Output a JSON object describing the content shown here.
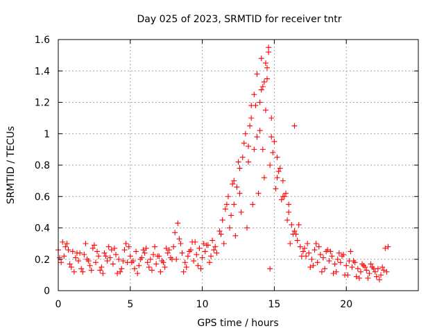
{
  "chart_data": {
    "type": "scatter",
    "title": "Day 025 of 2023, SRMTID for receiver tntr",
    "xlabel": "GPS time / hours",
    "ylabel": "SRMTID / TECUs",
    "xlim": [
      0,
      25.0
    ],
    "ylim": [
      0,
      1.6
    ],
    "x_ticks": [
      0,
      5,
      10,
      15,
      20
    ],
    "x_tick_labels": [
      "0",
      "5",
      "10",
      "15",
      "20"
    ],
    "y_ticks": [
      0,
      0.2,
      0.4,
      0.6,
      0.8,
      1.0,
      1.2,
      1.4,
      1.6
    ],
    "y_tick_labels": [
      "0",
      "0.2",
      "0.4",
      "0.6",
      "0.8",
      "1",
      "1.2",
      "1.4",
      "1.6"
    ],
    "grid": true,
    "marker": "plus",
    "color": "#ff0000",
    "series": [
      {
        "name": "SRMTID",
        "x": [
          0.0,
          0.2,
          0.4,
          0.6,
          0.8,
          1.0,
          1.2,
          1.4,
          1.6,
          1.8,
          2.0,
          2.2,
          2.4,
          2.6,
          2.8,
          3.0,
          3.2,
          3.4,
          3.6,
          3.8,
          4.0,
          4.2,
          4.4,
          4.6,
          4.8,
          5.0,
          5.2,
          5.4,
          5.6,
          5.8,
          6.0,
          6.2,
          6.4,
          6.6,
          6.8,
          7.0,
          7.2,
          7.4,
          7.6,
          7.8,
          8.0,
          8.2,
          8.4,
          8.6,
          8.8,
          9.0,
          9.2,
          9.4,
          9.6,
          9.8,
          10.0,
          10.2,
          10.4,
          10.6,
          10.8,
          11.0,
          11.2,
          11.4,
          11.6,
          11.8,
          12.0,
          12.2,
          12.4,
          12.6,
          12.8,
          13.0,
          13.2,
          13.4,
          13.6,
          13.8,
          14.0,
          14.2,
          14.4,
          14.6,
          14.8,
          15.0,
          15.2,
          15.4,
          15.6,
          15.8,
          16.0,
          16.2,
          16.4,
          16.6,
          16.8,
          17.0,
          17.2,
          17.4,
          17.6,
          17.8,
          18.0,
          18.2,
          18.4,
          18.6,
          18.8,
          19.0,
          19.2,
          19.4,
          19.6,
          19.8,
          20.0,
          20.2,
          20.4,
          20.6,
          20.8,
          21.0,
          21.2,
          21.4,
          21.6,
          21.8,
          22.0,
          22.2,
          22.4,
          22.6,
          22.8,
          0.1,
          0.5,
          0.9,
          1.3,
          1.7,
          2.1,
          2.5,
          2.9,
          3.3,
          3.7,
          4.1,
          4.5,
          4.9,
          5.3,
          5.7,
          6.1,
          6.5,
          6.9,
          7.3,
          7.7,
          8.1,
          8.5,
          8.9,
          9.3,
          9.7,
          10.1,
          10.5,
          10.9,
          11.3,
          11.7,
          12.1,
          12.5,
          12.9,
          13.3,
          13.7,
          14.1,
          14.5,
          14.9,
          15.3,
          15.7,
          16.1,
          16.5,
          16.9,
          17.3,
          17.7,
          18.1,
          18.5,
          18.9,
          19.3,
          19.7,
          20.1,
          20.5,
          20.9,
          21.3,
          21.7,
          22.1,
          22.5,
          22.9,
          11.5,
          11.9,
          12.3,
          12.7,
          13.1,
          13.5,
          13.9,
          14.3,
          14.7,
          15.1,
          15.5,
          15.9,
          16.3,
          16.7,
          12.2,
          12.6,
          13.2,
          13.6,
          14.0,
          14.4,
          14.8,
          15.2,
          15.6,
          16.0,
          16.4,
          13.4,
          13.8,
          14.2,
          14.6,
          14.1,
          14.5,
          14.3,
          14.7,
          0.3,
          0.7,
          1.1,
          1.5,
          1.9,
          2.3,
          2.7,
          3.1,
          3.5,
          3.9,
          4.3,
          4.7,
          5.1,
          5.5,
          5.9,
          6.3,
          6.7,
          7.1,
          7.5,
          7.9,
          8.3,
          8.7,
          9.1,
          9.5,
          9.9,
          10.3,
          10.7,
          17.1,
          17.5,
          17.9,
          18.3,
          18.7,
          19.1,
          19.5,
          19.9,
          20.3,
          20.7,
          21.1,
          21.5,
          21.9,
          22.3,
          22.7
        ],
        "y": [
          0.26,
          0.18,
          0.22,
          0.3,
          0.17,
          0.25,
          0.21,
          0.19,
          0.14,
          0.23,
          0.2,
          0.16,
          0.27,
          0.18,
          0.22,
          0.15,
          0.24,
          0.19,
          0.21,
          0.17,
          0.23,
          0.2,
          0.14,
          0.26,
          0.18,
          0.22,
          0.19,
          0.25,
          0.16,
          0.21,
          0.24,
          0.18,
          0.2,
          0.23,
          0.17,
          0.22,
          0.19,
          0.15,
          0.24,
          0.21,
          0.28,
          0.2,
          0.33,
          0.24,
          0.18,
          0.22,
          0.26,
          0.19,
          0.23,
          0.27,
          0.21,
          0.25,
          0.29,
          0.22,
          0.26,
          0.24,
          0.38,
          0.45,
          0.52,
          0.6,
          0.48,
          0.7,
          0.66,
          0.78,
          0.85,
          1.0,
          0.92,
          1.1,
          1.25,
          1.38,
          1.2,
          1.3,
          1.45,
          1.55,
          1.1,
          0.95,
          0.85,
          0.78,
          0.7,
          0.62,
          0.5,
          0.42,
          0.38,
          0.32,
          0.28,
          0.25,
          0.22,
          0.24,
          0.2,
          0.26,
          0.18,
          0.23,
          0.21,
          0.25,
          0.19,
          0.22,
          0.17,
          0.2,
          0.18,
          0.23,
          0.16,
          0.19,
          0.15,
          0.18,
          0.14,
          0.12,
          0.16,
          0.13,
          0.11,
          0.15,
          0.12,
          0.14,
          0.1,
          0.13,
          0.12,
          0.21,
          0.28,
          0.15,
          0.24,
          0.12,
          0.19,
          0.29,
          0.13,
          0.22,
          0.26,
          0.11,
          0.19,
          0.28,
          0.14,
          0.2,
          0.27,
          0.13,
          0.22,
          0.18,
          0.26,
          0.37,
          0.3,
          0.15,
          0.31,
          0.16,
          0.3,
          0.18,
          0.28,
          0.36,
          0.55,
          0.68,
          0.82,
          0.94,
          1.05,
          1.18,
          1.28,
          1.42,
          0.88,
          0.76,
          0.6,
          0.3,
          0.36,
          0.22,
          0.3,
          0.16,
          0.28,
          0.14,
          0.25,
          0.12,
          0.22,
          0.1,
          0.19,
          0.08,
          0.15,
          0.17,
          0.09,
          0.15,
          0.28,
          0.3,
          0.4,
          0.35,
          0.5,
          0.4,
          0.55,
          0.62,
          0.72,
          0.8,
          0.65,
          0.58,
          0.45,
          0.36,
          0.42,
          0.55,
          0.62,
          0.82,
          0.9,
          1.02,
          1.15,
          0.98,
          0.72,
          0.6,
          0.55,
          1.05,
          1.18,
          0.98,
          0.9,
          1.52,
          1.48,
          1.35,
          1.33,
          0.14,
          0.31,
          0.26,
          0.12,
          0.24,
          0.3,
          0.13,
          0.25,
          0.11,
          0.28,
          0.27,
          0.12,
          0.3,
          0.18,
          0.11,
          0.26,
          0.15,
          0.28,
          0.12,
          0.27,
          0.2,
          0.43,
          0.12,
          0.25,
          0.31,
          0.14,
          0.29,
          0.32,
          0.27,
          0.15,
          0.3,
          0.12,
          0.26,
          0.11,
          0.24,
          0.1,
          0.25,
          0.09,
          0.17,
          0.08,
          0.14,
          0.07,
          0.27
        ]
      }
    ]
  }
}
